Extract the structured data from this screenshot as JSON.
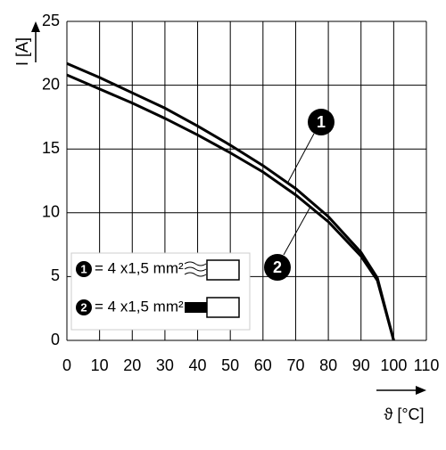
{
  "chart_data": {
    "type": "line",
    "x_label": "ϑ [°C]",
    "y_label": "I [A]",
    "x": [
      0,
      10,
      20,
      30,
      40,
      50,
      60,
      70,
      80,
      90,
      95,
      100
    ],
    "series": [
      {
        "name": "1",
        "label": "= 4 x1,5 mm²",
        "color": "#000000",
        "values": [
          21.7,
          20.6,
          19.4,
          18.2,
          16.8,
          15.3,
          13.7,
          11.9,
          9.7,
          6.9,
          4.9,
          0
        ]
      },
      {
        "name": "2",
        "label": "= 4 x1,5 mm²",
        "color": "#000000",
        "values": [
          20.8,
          19.7,
          18.6,
          17.4,
          16.1,
          14.7,
          13.2,
          11.4,
          9.3,
          6.6,
          4.7,
          0
        ]
      }
    ],
    "xlim": [
      0,
      110
    ],
    "xticks": [
      0,
      10,
      20,
      30,
      40,
      50,
      60,
      70,
      80,
      90,
      100,
      110
    ],
    "ylim": [
      0,
      25
    ],
    "yticks": [
      0,
      5,
      10,
      15,
      20,
      25
    ],
    "grid": true
  }
}
